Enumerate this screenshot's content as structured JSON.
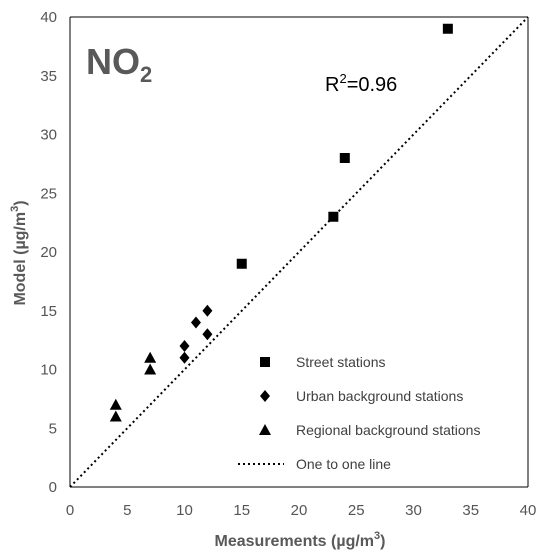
{
  "chart_data": {
    "type": "scatter",
    "title": "NO2",
    "annotation": "R2=0.96",
    "xlabel": "Measurements (µg/m3)",
    "ylabel": "Model (µg/m3)",
    "xlim": [
      0,
      40
    ],
    "ylim": [
      0,
      40
    ],
    "xticks": [
      0,
      5,
      10,
      15,
      20,
      25,
      30,
      35,
      40
    ],
    "yticks": [
      0,
      5,
      10,
      15,
      20,
      25,
      30,
      35,
      40
    ],
    "grid": false,
    "legend_position": "bottom-right",
    "series": [
      {
        "name": "Street stations",
        "marker": "square",
        "color": "#000000",
        "points": [
          [
            15,
            19
          ],
          [
            23,
            23
          ],
          [
            24,
            28
          ],
          [
            33,
            39
          ]
        ]
      },
      {
        "name": "Urban background stations",
        "marker": "diamond",
        "color": "#000000",
        "points": [
          [
            10,
            11
          ],
          [
            10,
            12
          ],
          [
            11,
            14
          ],
          [
            12,
            13
          ],
          [
            12,
            15
          ]
        ]
      },
      {
        "name": "Regional background stations",
        "marker": "triangle",
        "color": "#000000",
        "points": [
          [
            4,
            6
          ],
          [
            4,
            7
          ],
          [
            7,
            10
          ],
          [
            7,
            11
          ]
        ]
      }
    ],
    "reference_line": {
      "name": "One to one line",
      "style": "dotted",
      "from": [
        0,
        0
      ],
      "to": [
        40,
        40
      ]
    }
  }
}
